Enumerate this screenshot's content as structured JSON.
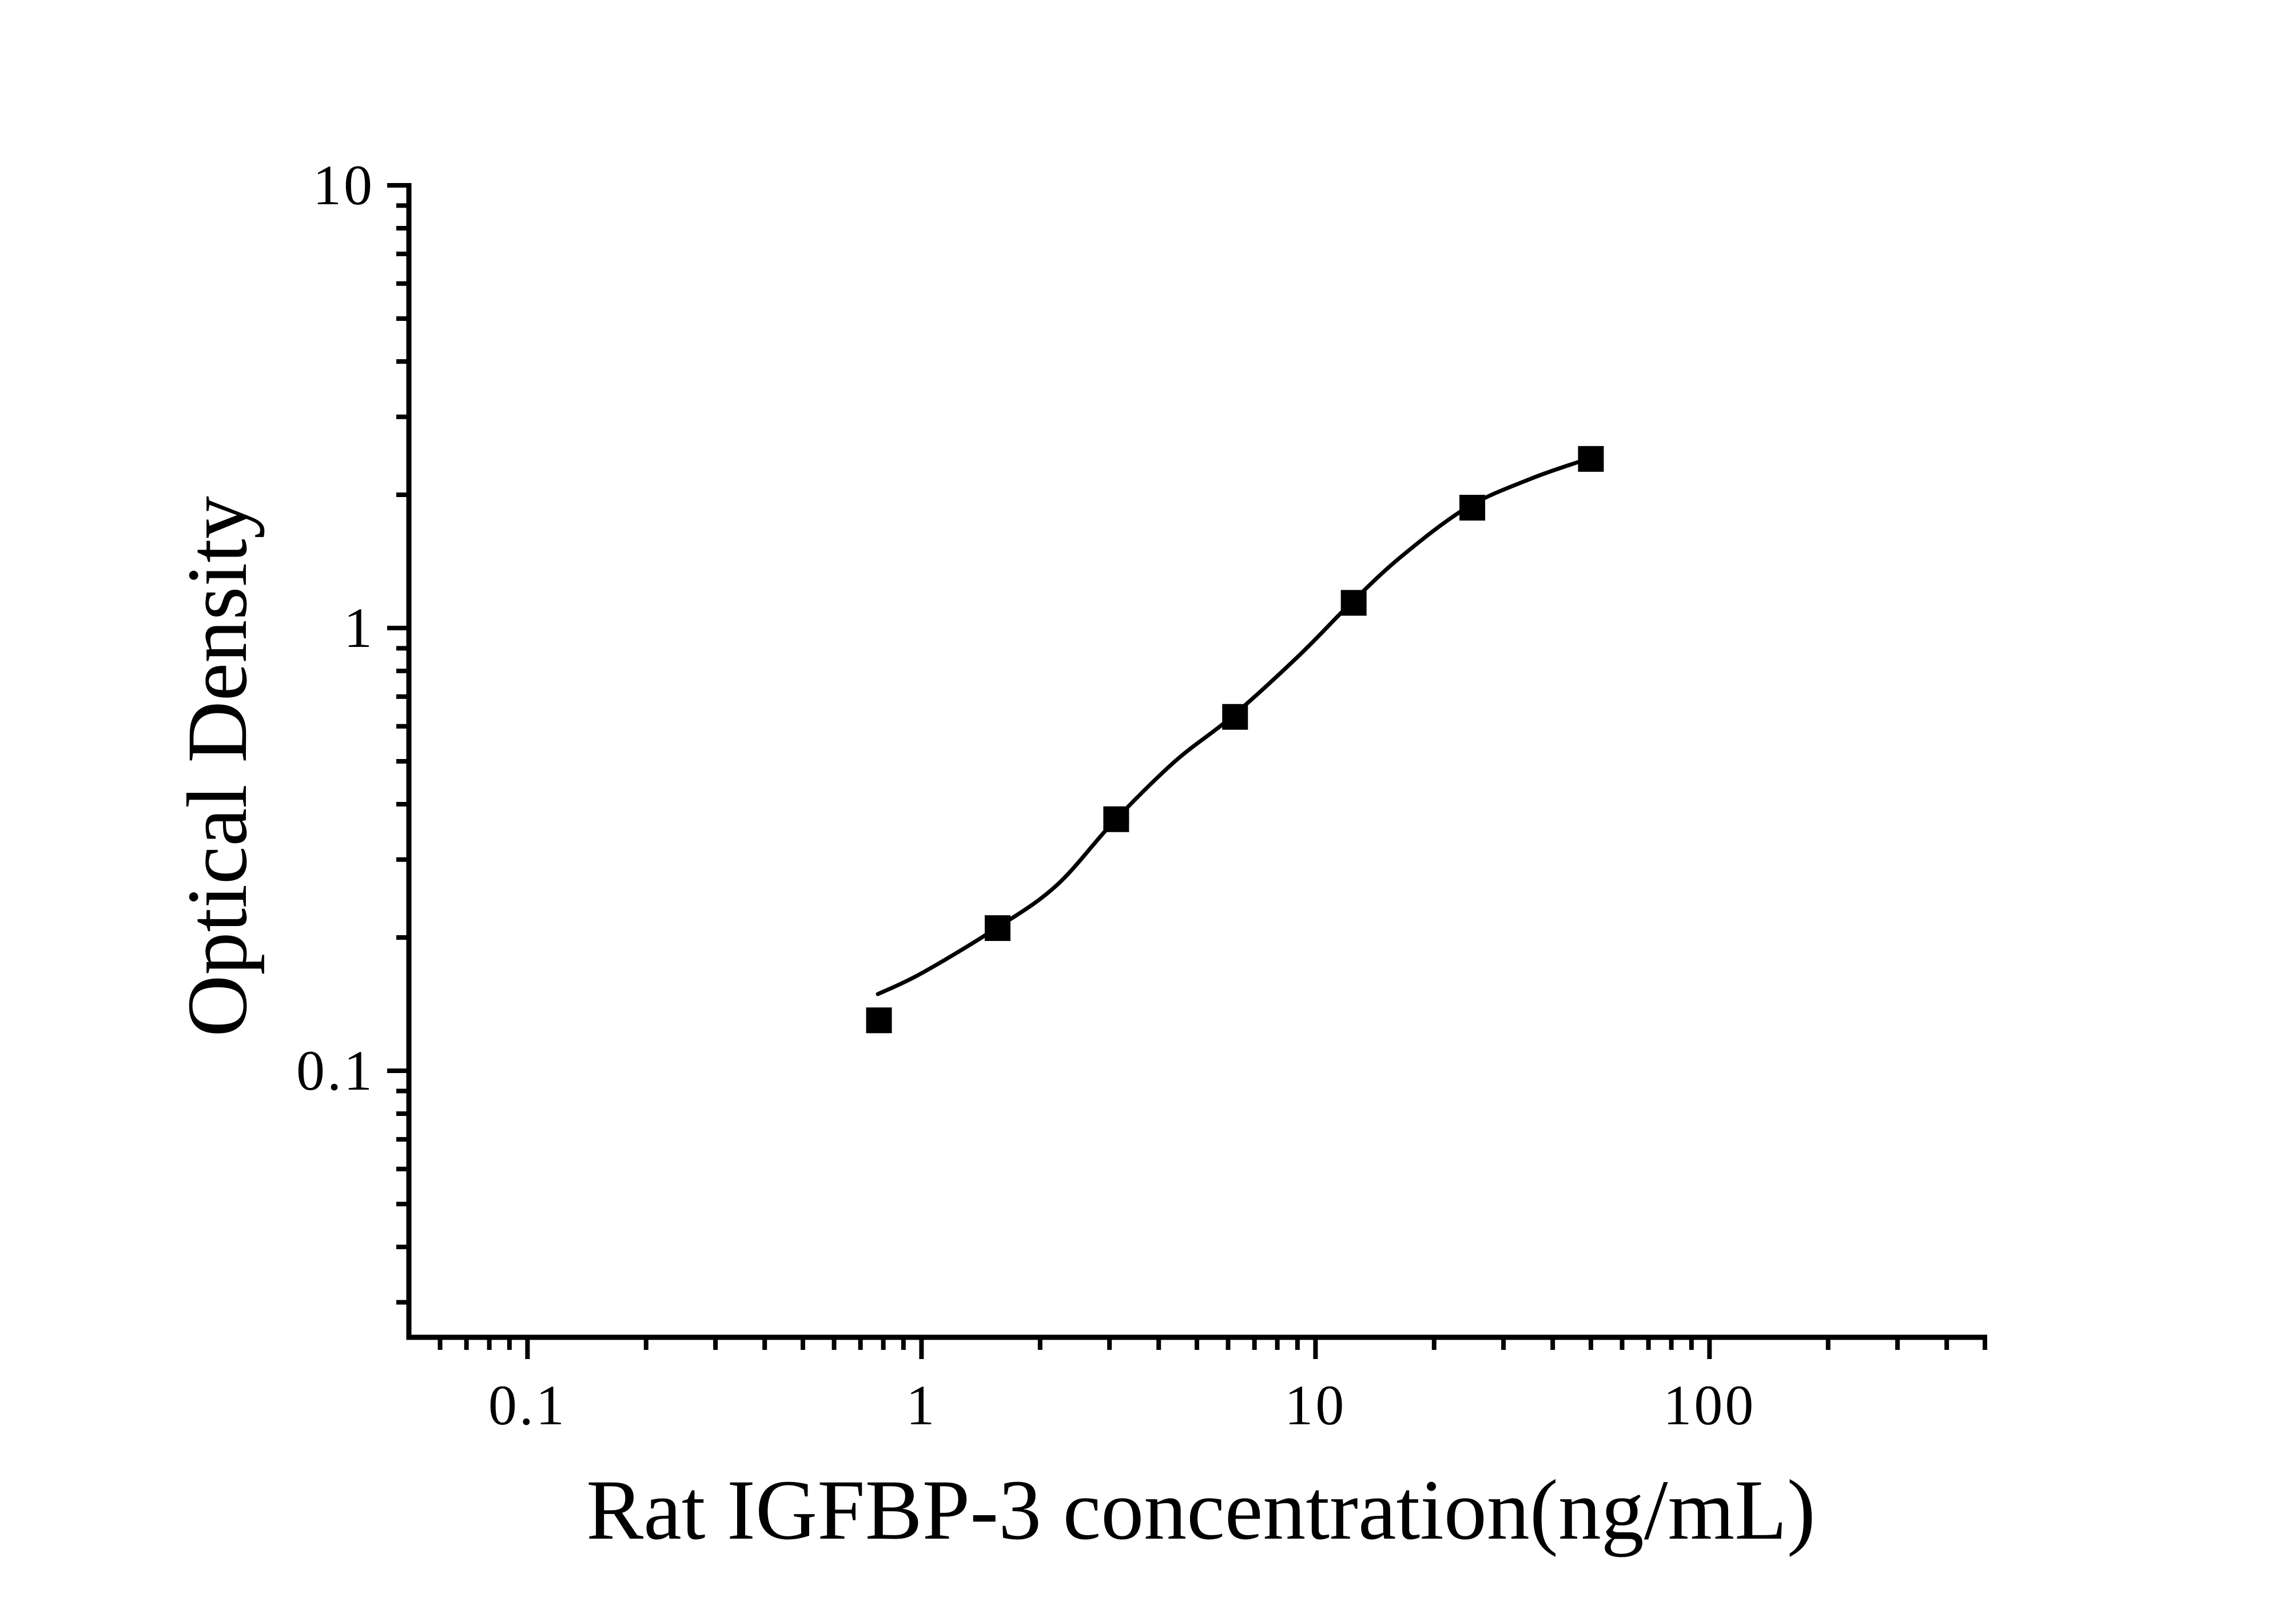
{
  "chart_data": {
    "type": "scatter",
    "title": "",
    "xlabel": "Rat IGFBP-3 concentration(ng/mL)",
    "ylabel": "Optical Density",
    "x_scale": "log",
    "y_scale": "log",
    "xlim": [
      0.05,
      500
    ],
    "ylim": [
      0.025,
      10
    ],
    "grid": false,
    "legend": false,
    "ink_color": "#000000",
    "background_color": "#ffffff",
    "x_major_ticks": [
      {
        "v": 0.1,
        "label": "0.1"
      },
      {
        "v": 1,
        "label": "1"
      },
      {
        "v": 10,
        "label": "10"
      },
      {
        "v": 100,
        "label": "100"
      }
    ],
    "x_minor_ticks": [
      0.06,
      0.07,
      0.08,
      0.09,
      0.2,
      0.3,
      0.4,
      0.5,
      0.6,
      0.7,
      0.8,
      0.9,
      2,
      3,
      4,
      5,
      6,
      7,
      8,
      9,
      20,
      30,
      40,
      50,
      60,
      70,
      80,
      90,
      200,
      300,
      400,
      500
    ],
    "y_major_ticks": [
      {
        "v": 10,
        "label": "10"
      },
      {
        "v": 1,
        "label": "1"
      },
      {
        "v": 0.1,
        "label": "0.1"
      }
    ],
    "y_minor_ticks": [
      9,
      8,
      7,
      6,
      5,
      4,
      3,
      2,
      0.9,
      0.8,
      0.7,
      0.6,
      0.5,
      0.4,
      0.3,
      0.2,
      0.09,
      0.08,
      0.07,
      0.06,
      0.05,
      0.04,
      0.03
    ],
    "series": [
      {
        "name": "standard points",
        "kind": "markers",
        "marker": "filled-square",
        "points": [
          [
            0.78,
            0.13
          ],
          [
            1.56,
            0.21
          ],
          [
            3.12,
            0.37
          ],
          [
            6.25,
            0.63
          ],
          [
            12.5,
            1.14
          ],
          [
            25,
            1.87
          ],
          [
            50,
            2.41
          ]
        ]
      },
      {
        "name": "fitted curve",
        "kind": "line",
        "points": [
          [
            0.775,
            0.149
          ],
          [
            1.0,
            0.166
          ],
          [
            1.55,
            0.21
          ],
          [
            2.2,
            0.262
          ],
          [
            3.08,
            0.366
          ],
          [
            4.4,
            0.5
          ],
          [
            6.1,
            0.628
          ],
          [
            9.0,
            0.86
          ],
          [
            12.2,
            1.13
          ],
          [
            16.5,
            1.45
          ],
          [
            24.2,
            1.87
          ],
          [
            35.0,
            2.17
          ],
          [
            47.0,
            2.38
          ]
        ]
      }
    ]
  }
}
